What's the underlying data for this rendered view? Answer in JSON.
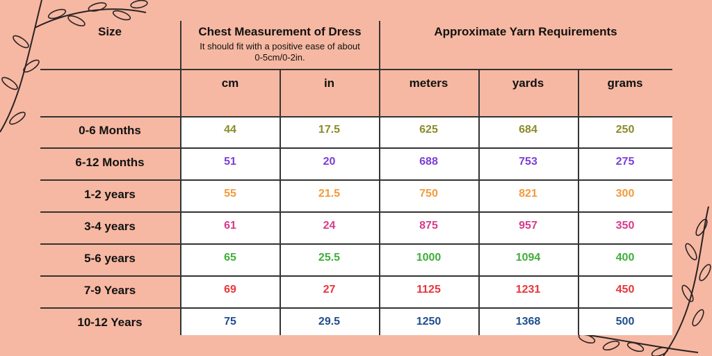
{
  "headers": {
    "size": "Size",
    "chest_title": "Chest Measurement of Dress",
    "chest_subtitle_line1": "It should fit with a positive ease of about",
    "chest_subtitle_line2": "0-5cm/0-2in.",
    "yarn_title": "Approximate Yarn Requirements"
  },
  "columns": [
    "cm",
    "in",
    "meters",
    "yards",
    "grams"
  ],
  "rows": [
    {
      "size": "0-6 Months",
      "cm": "44",
      "in": "17.5",
      "meters": "625",
      "yards": "684",
      "grams": "250",
      "color": "#8b8b2a"
    },
    {
      "size": "6-12 Months",
      "cm": "51",
      "in": "20",
      "meters": "688",
      "yards": "753",
      "grams": "275",
      "color": "#7a3fd6"
    },
    {
      "size": "1-2 years",
      "cm": "55",
      "in": "21.5",
      "meters": "750",
      "yards": "821",
      "grams": "300",
      "color": "#f39a3c"
    },
    {
      "size": "3-4 years",
      "cm": "61",
      "in": "24",
      "meters": "875",
      "yards": "957",
      "grams": "350",
      "color": "#d63b8c"
    },
    {
      "size": "5-6 years",
      "cm": "65",
      "in": "25.5",
      "meters": "1000",
      "yards": "1094",
      "grams": "400",
      "color": "#3fae3a"
    },
    {
      "size": "7-9 Years",
      "cm": "69",
      "in": "27",
      "meters": "1125",
      "yards": "1231",
      "grams": "450",
      "color": "#e8353b"
    },
    {
      "size": "10-12 Years",
      "cm": "75",
      "in": "29.5",
      "meters": "1250",
      "yards": "1368",
      "grams": "500",
      "color": "#1f4e8c"
    }
  ]
}
